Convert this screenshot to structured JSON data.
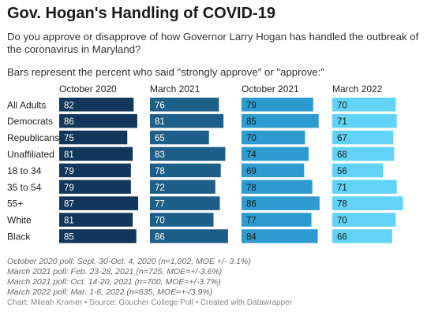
{
  "header": {
    "title": "Gov. Hogan's Handling of COVID-19",
    "subtitle": "Do you approve or disapprove of how Governor Larry Hogan has handled the outbreak of the coronavirus in Maryland?",
    "note": "Bars represent the percent who said \"strongly approve\" or \"approve:\""
  },
  "chart_data": {
    "type": "bar",
    "title": "Gov. Hogan's Handling of COVID-19",
    "categories": [
      "All Adults",
      "Democrats",
      "Republicans",
      "Unaffiliated",
      "18 to 34",
      "35 to 54",
      "55+",
      "White",
      "Black"
    ],
    "xlim": [
      0,
      100
    ],
    "series": [
      {
        "name": "October 2020",
        "color": "#12375a",
        "values": [
          82,
          86,
          75,
          81,
          79,
          79,
          87,
          81,
          85
        ]
      },
      {
        "name": "March 2021",
        "color": "#1d5f88",
        "values": [
          76,
          81,
          65,
          83,
          78,
          72,
          77,
          70,
          86
        ]
      },
      {
        "name": "October 2021",
        "color": "#2d9bd0",
        "values": [
          79,
          85,
          70,
          74,
          69,
          78,
          86,
          77,
          84
        ]
      },
      {
        "name": "March 2022",
        "color": "#60d3f6",
        "values": [
          70,
          71,
          67,
          68,
          56,
          71,
          78,
          70,
          66
        ]
      }
    ]
  },
  "footnotes": [
    "October 2020 poll: Sept. 30-Oct. 4, 2020 (n=1,002, MOE +/- 3.1%)",
    "March 2021 poll: Feb. 23-28, 2021 (n=725, MOE=+/-3.6%)",
    "March 2021 poll: Oct. 14-20, 2021 (n=700, MOE=+/-3.7%)",
    "March 2022 poll: Mar. 1-6, 2022 (n=635, MOE=+-/3.9%)"
  ],
  "credit": "Chart: Mileah Kromer • Source: Goucher College Poll • Created with Datawrapper"
}
